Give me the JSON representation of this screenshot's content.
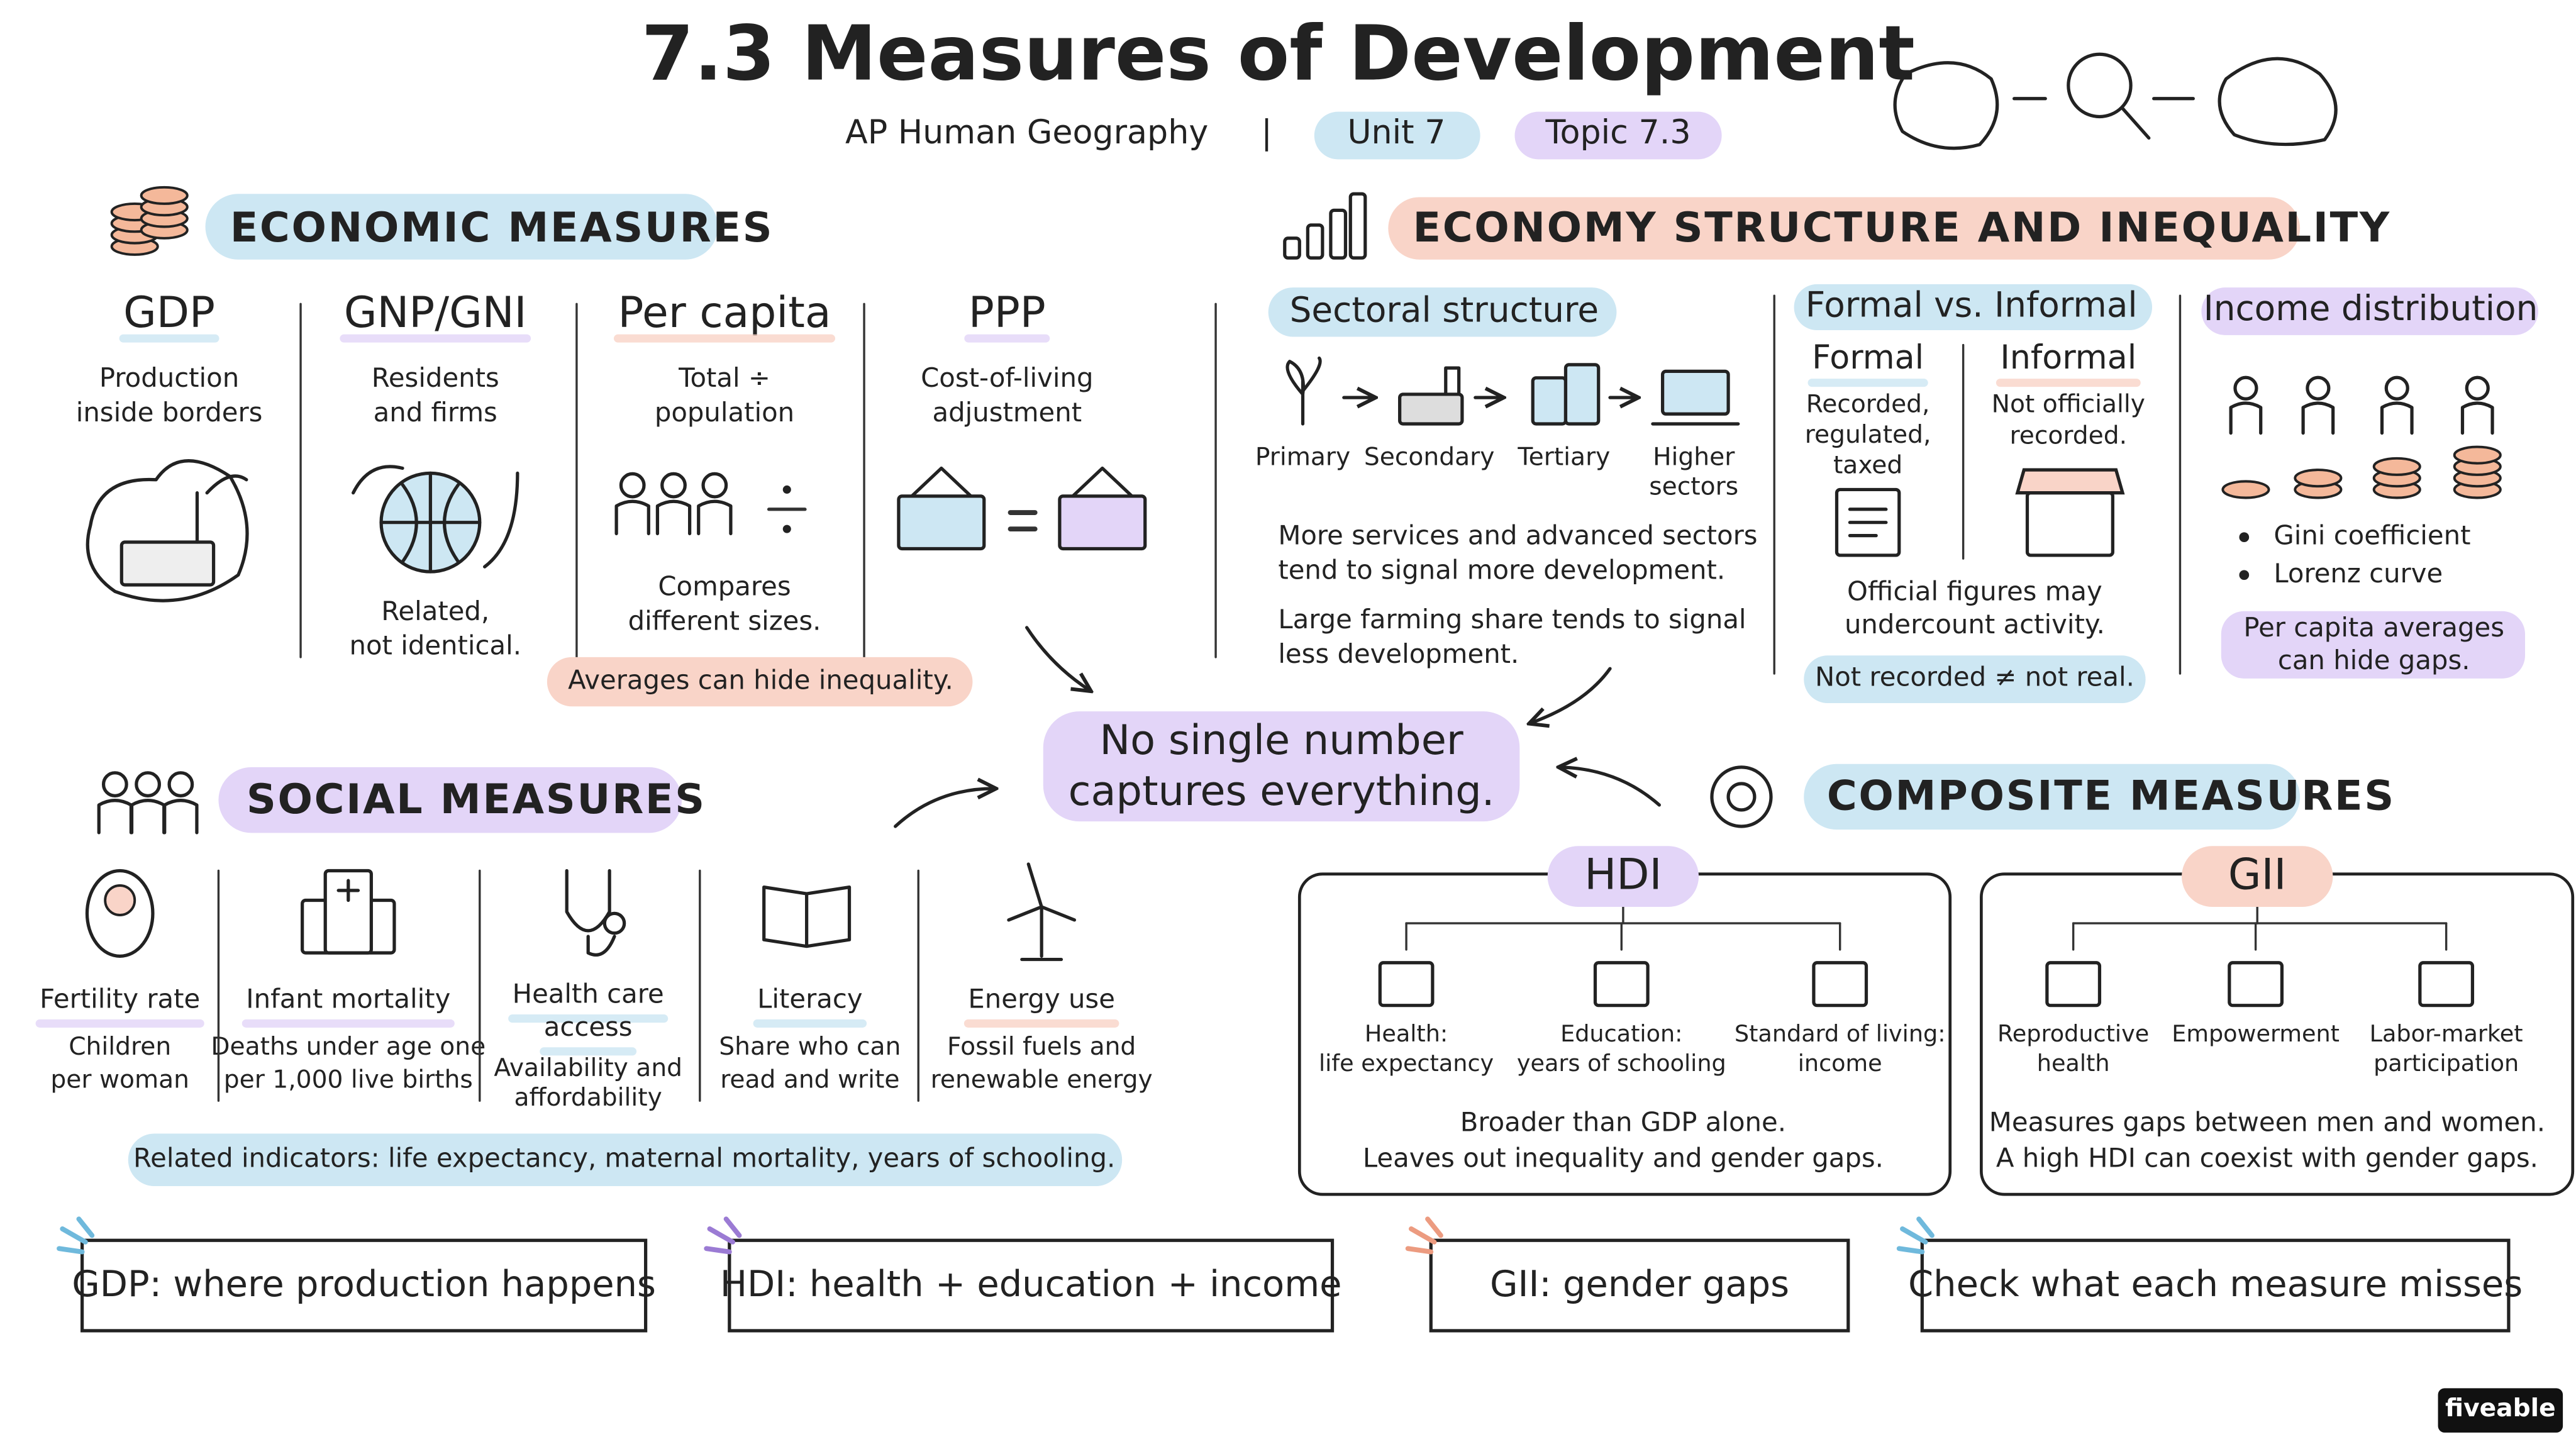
{
  "header": {
    "title": "7.3 Measures of Development",
    "subtitle": "AP Human Geography",
    "separator": "|",
    "unit": "Unit 7",
    "topic": "Topic 7.3"
  },
  "economic": {
    "heading": "ECONOMIC MEASURES",
    "items": [
      {
        "name": "GDP",
        "desc": [
          "Production",
          "inside borders"
        ]
      },
      {
        "name": "GNP/GNI",
        "desc": [
          "Residents",
          "and firms"
        ],
        "note": [
          "Related,",
          "not identical."
        ]
      },
      {
        "name": "Per capita",
        "desc": [
          "Total ÷",
          "population"
        ],
        "note": [
          "Compares",
          "different sizes."
        ]
      },
      {
        "name": "PPP",
        "desc": [
          "Cost-of-living",
          "adjustment"
        ]
      }
    ],
    "callout": "Averages can hide inequality."
  },
  "structure": {
    "heading": "ECONOMY STRUCTURE AND INEQUALITY",
    "sectoral": {
      "title": "Sectoral structure",
      "sectors": [
        [
          "Primary"
        ],
        [
          "Secondary"
        ],
        [
          "Tertiary"
        ],
        [
          "Higher",
          "sectors"
        ]
      ],
      "notes": [
        [
          "More services and advanced sectors",
          "tend to signal more development."
        ],
        [
          "Large farming share tends to signal",
          "less development."
        ]
      ]
    },
    "formal": {
      "title": "Formal vs. Informal",
      "formal": {
        "name": "Formal",
        "desc": [
          "Recorded,",
          "regulated,",
          "taxed"
        ]
      },
      "informal": {
        "name": "Informal",
        "desc": [
          "Not officially",
          "recorded."
        ]
      },
      "note": [
        "Official figures may",
        "undercount activity."
      ],
      "callout": "Not recorded ≠ not real."
    },
    "income": {
      "title": "Income distribution",
      "bullets": [
        "Gini coefficient",
        "Lorenz curve"
      ],
      "callout": [
        "Per capita averages",
        "can hide gaps."
      ]
    }
  },
  "center": [
    "No single number",
    "captures everything."
  ],
  "social": {
    "heading": "SOCIAL MEASURES",
    "items": [
      {
        "name": [
          "Fertility rate"
        ],
        "desc": [
          "Children",
          "per woman"
        ]
      },
      {
        "name": [
          "Infant mortality"
        ],
        "desc": [
          "Deaths under age one",
          "per 1,000 live births"
        ]
      },
      {
        "name": [
          "Health care",
          "access"
        ],
        "desc": [
          "Availability and",
          "affordability"
        ]
      },
      {
        "name": [
          "Literacy"
        ],
        "desc": [
          "Share who can",
          "read and write"
        ]
      },
      {
        "name": [
          "Energy use"
        ],
        "desc": [
          "Fossil fuels and",
          "renewable energy"
        ]
      }
    ],
    "callout": "Related indicators: life expectancy, maternal mortality, years of schooling."
  },
  "composite": {
    "heading": "COMPOSITE MEASURES",
    "hdi": {
      "name": "HDI",
      "parts": [
        [
          "Health:",
          "life expectancy"
        ],
        [
          "Education:",
          "years of schooling"
        ],
        [
          "Standard of living:",
          "income"
        ]
      ],
      "note": [
        "Broader than GDP alone.",
        "Leaves out inequality and gender gaps."
      ]
    },
    "gii": {
      "name": "GII",
      "parts": [
        [
          "Reproductive",
          "health"
        ],
        [
          "Empowerment"
        ],
        [
          "Labor-market",
          "participation"
        ]
      ],
      "note": [
        "Measures gaps between men and women.",
        "A high HDI can coexist with gender gaps."
      ]
    }
  },
  "takeaways": [
    "GDP: where production happens",
    "HDI: health + education + income",
    "GII: gender gaps",
    "Check what each measure misses"
  ],
  "brand": "fiveable"
}
